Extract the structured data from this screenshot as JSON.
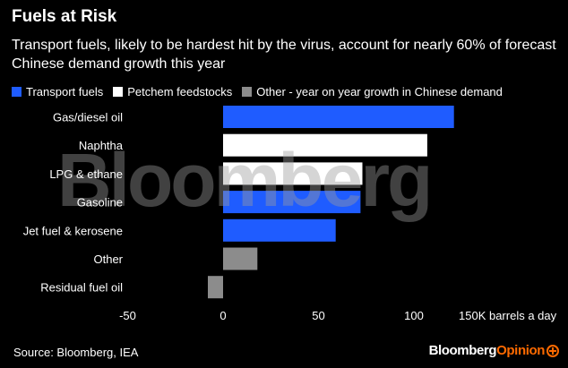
{
  "title": "Fuels at Risk",
  "subtitle": "Transport fuels, likely to be hardest hit by the virus, account for nearly 60% of forecast Chinese demand growth this year",
  "legend": [
    {
      "label": "Transport fuels",
      "color": "#1f5cff"
    },
    {
      "label": "Petchem feedstocks",
      "color": "#ffffff"
    },
    {
      "label": "Other - year on year growth in Chinese demand",
      "color": "#8c8c8c"
    }
  ],
  "watermark": "Bloomberg",
  "source": "Source: Bloomberg, IEA",
  "brand": {
    "part1": "Bloomberg",
    "part2": "Opinion",
    "icon": "plus-circle-icon"
  },
  "chart_data": {
    "type": "bar",
    "orientation": "horizontal",
    "categories": [
      "Gas/diesel oil",
      "Naphtha",
      "LPG & ethane",
      "Gasoline",
      "Jet fuel & kerosene",
      "Other",
      "Residual fuel oil"
    ],
    "values": [
      121,
      107,
      73,
      72,
      59,
      18,
      -8
    ],
    "category_groups": [
      "Transport fuels",
      "Petchem feedstocks",
      "Petchem feedstocks",
      "Transport fuels",
      "Transport fuels",
      "Other - year on year growth in Chinese demand",
      "Other - year on year growth in Chinese demand"
    ],
    "xlim": [
      -50,
      150
    ],
    "xticks": [
      -50,
      0,
      50,
      100,
      150
    ],
    "xtick_labels": [
      "-50",
      "0",
      "50",
      "100",
      "150K barrels a day"
    ],
    "grid": false,
    "legend_position": "top-left"
  }
}
